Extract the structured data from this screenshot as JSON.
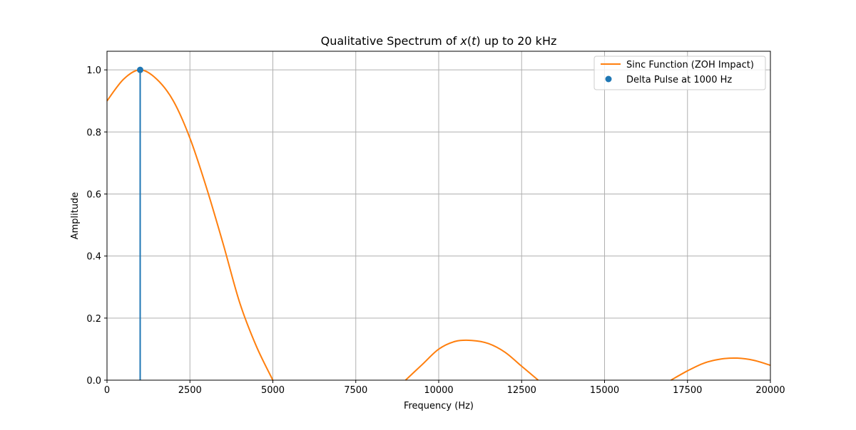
{
  "chart_data": {
    "type": "line",
    "title_prefix": "Qualitative Spectrum of ",
    "title_math": "x",
    "title_paren_open": "(",
    "title_math_t": "t",
    "title_paren_close": ")",
    "title_suffix": " up to 20 kHz",
    "xlabel": "Frequency (Hz)",
    "ylabel": "Amplitude",
    "xlim": [
      0,
      20000
    ],
    "ylim": [
      0,
      1.06
    ],
    "x_ticks": [
      0,
      2500,
      5000,
      7500,
      10000,
      12500,
      15000,
      17500,
      20000
    ],
    "x_tick_labels": [
      "0",
      "2500",
      "5000",
      "7500",
      "10000",
      "12500",
      "15000",
      "17500",
      "20000"
    ],
    "y_ticks": [
      0.0,
      0.2,
      0.4,
      0.6,
      0.8,
      1.0
    ],
    "y_tick_labels": [
      "0.0",
      "0.2",
      "0.4",
      "0.6",
      "0.8",
      "1.0"
    ],
    "grid": true,
    "legend_position": "top-right",
    "series": [
      {
        "name": "Sinc Function (ZOH Impact)",
        "kind": "line",
        "color": "#ff7f0e",
        "x": [
          0,
          500,
          1000,
          1500,
          2000,
          2500,
          3000,
          3500,
          4000,
          4500,
          5000,
          9000,
          9500,
          10000,
          10500,
          11000,
          11500,
          12000,
          12500,
          13000,
          17000,
          17500,
          18000,
          18500,
          19000,
          19500,
          20000
        ],
        "y": [
          0.9,
          0.97,
          1.0,
          0.97,
          0.9,
          0.78,
          0.62,
          0.44,
          0.25,
          0.11,
          0.0,
          0.0,
          0.05,
          0.1,
          0.125,
          0.128,
          0.118,
          0.09,
          0.045,
          0.0,
          0.0,
          0.03,
          0.055,
          0.068,
          0.071,
          0.064,
          0.048
        ]
      },
      {
        "name": "Delta Pulse at 1000 Hz",
        "kind": "stem",
        "color": "#1f77b4",
        "x": [
          1000
        ],
        "y": [
          1.0
        ]
      }
    ]
  }
}
